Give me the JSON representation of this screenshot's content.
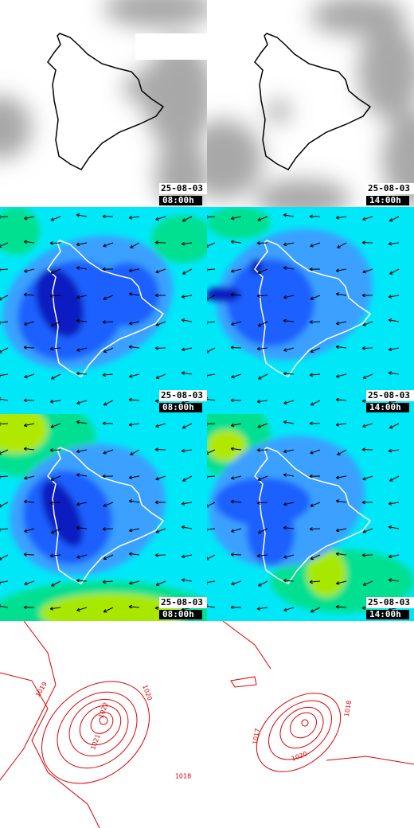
{
  "panels": [
    {
      "date": "25-08-03",
      "time": "08:00h"
    },
    {
      "date": "25-08-03",
      "time": "14:00h"
    },
    {
      "date": "25-08-03",
      "time": "08:00h"
    },
    {
      "date": "25-08-03",
      "time": "14:00h"
    },
    {
      "date": "25-08-03",
      "time": "08:00h"
    },
    {
      "date": "25-08-03",
      "time": "14:00h"
    }
  ],
  "contour_labels": {
    "left": [
      "1019",
      "1020",
      "1022",
      "1021",
      "1018"
    ],
    "right": [
      "1017",
      "1018",
      "1020"
    ]
  }
}
